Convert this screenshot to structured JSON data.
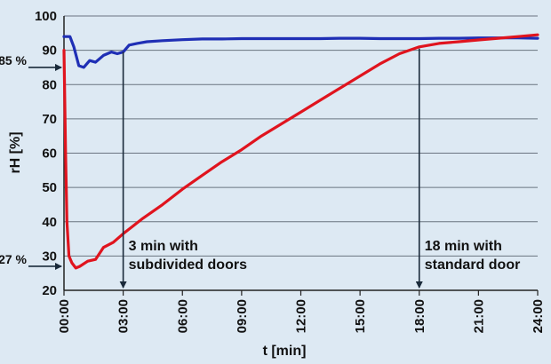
{
  "chart_data": {
    "type": "line",
    "xlabel": "t [min]",
    "ylabel": "rH [%]",
    "xlim": [
      0,
      24
    ],
    "ylim": [
      20,
      100
    ],
    "yticks": [
      "20",
      "30",
      "40",
      "50",
      "60",
      "70",
      "80",
      "90",
      "100"
    ],
    "xticks": [
      "00:00",
      "03:00",
      "06:00",
      "09:00",
      "12:00",
      "15:00",
      "18:00",
      "21:00",
      "24:00"
    ],
    "grid": true,
    "series": [
      {
        "color": "#1f2fb5",
        "x": [
          0,
          0.3,
          0.5,
          0.75,
          1.0,
          1.3,
          1.6,
          2.0,
          2.4,
          2.7,
          3.0,
          3.3,
          3.7,
          4.2,
          5,
          6,
          7,
          8,
          9,
          10,
          11,
          12,
          13,
          14,
          15,
          16,
          17,
          18,
          19,
          20,
          21,
          22,
          23,
          24
        ],
        "y": [
          94,
          94,
          91,
          85.5,
          85,
          87,
          86.5,
          88.5,
          89.5,
          89,
          89.5,
          91.5,
          92,
          92.5,
          92.8,
          93.1,
          93.3,
          93.3,
          93.4,
          93.4,
          93.4,
          93.4,
          93.4,
          93.5,
          93.5,
          93.4,
          93.4,
          93.4,
          93.5,
          93.5,
          93.6,
          93.6,
          93.6,
          93.5
        ]
      },
      {
        "color": "#e0141e",
        "x": [
          0,
          0.08,
          0.15,
          0.25,
          0.4,
          0.6,
          0.8,
          1.2,
          1.6,
          2.0,
          2.5,
          3.0,
          4,
          5,
          6,
          7,
          8,
          9,
          10,
          11,
          12,
          13,
          14,
          15,
          16,
          17,
          18,
          19,
          20,
          21,
          22,
          23,
          24
        ],
        "y": [
          90,
          60,
          40,
          30,
          28,
          26.5,
          27,
          28.5,
          29,
          32.5,
          34,
          36.5,
          41,
          45,
          49.5,
          53.5,
          57.5,
          61,
          65,
          68.5,
          72,
          75.5,
          79,
          82.5,
          86,
          89,
          91,
          92,
          92.5,
          93,
          93.5,
          94,
          94.5
        ]
      }
    ],
    "annotations": [
      {
        "text": "85 %",
        "x": 0,
        "y": 85
      },
      {
        "text": "27 %",
        "x": 0,
        "y": 27
      },
      {
        "lines": [
          "3 min with",
          "subdivided doors"
        ],
        "x": 3,
        "from_y": 89.5
      },
      {
        "lines": [
          "18 min with",
          "standard door"
        ],
        "x": 18,
        "from_y": 90.5
      }
    ]
  }
}
